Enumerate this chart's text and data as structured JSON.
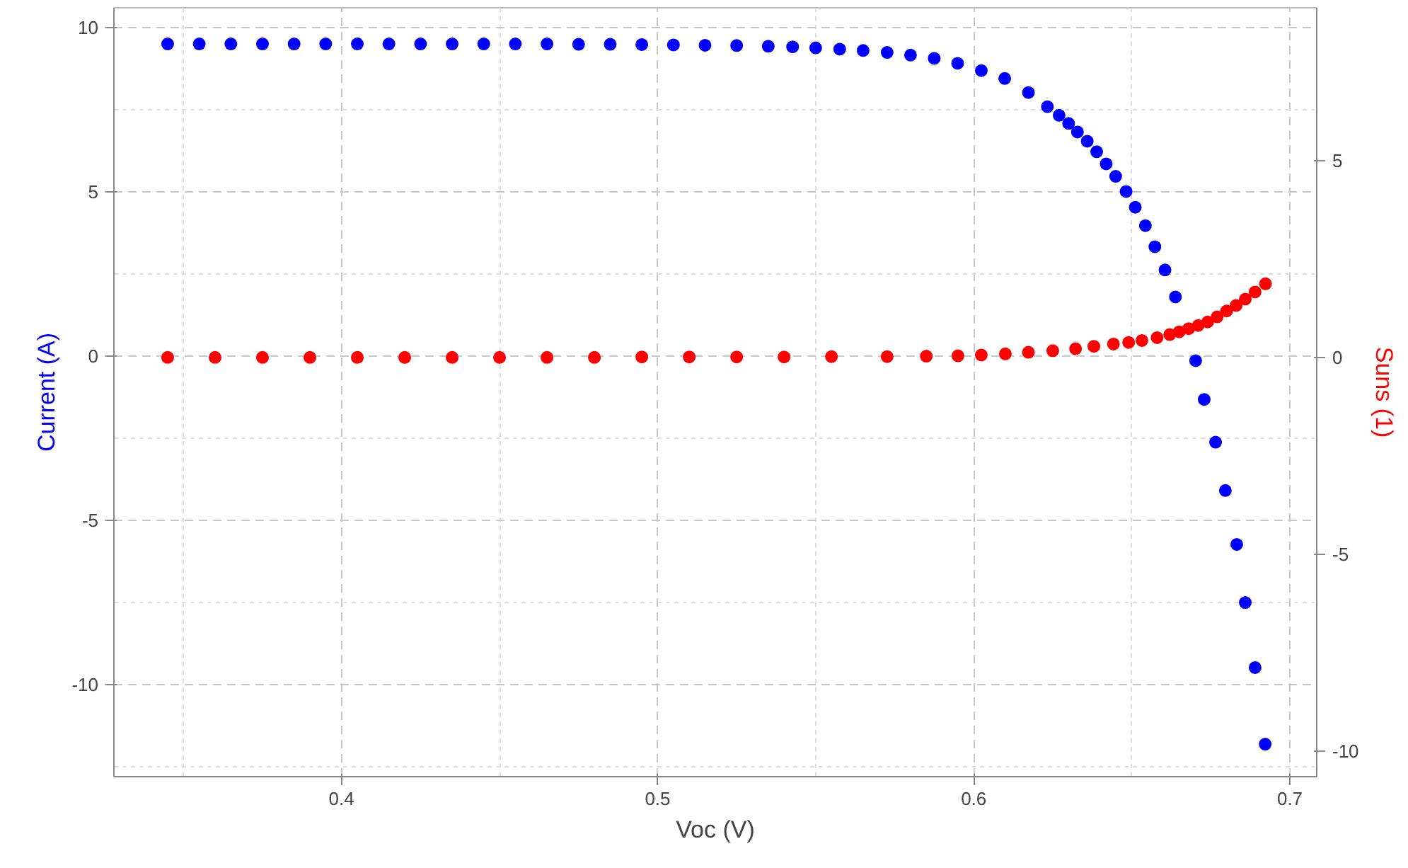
{
  "chart_data": {
    "type": "scatter",
    "xlabel": "Voc (V)",
    "ylabel": "Current (A)",
    "y2label": "Suns (1)",
    "xlim": [
      0.328,
      0.7085
    ],
    "xticks": [
      0.4,
      0.5,
      0.6,
      0.7
    ],
    "ylim": [
      -12.8,
      10.6
    ],
    "yticks": [
      -10,
      -5,
      0,
      5,
      10
    ],
    "y2lim": [
      -10.65,
      8.88
    ],
    "y2ticks": [
      -10,
      -5,
      0,
      5
    ],
    "grid": true,
    "marker": "circle",
    "series": [
      {
        "color": "#0000ff",
        "x": [
          0.345,
          0.355,
          0.365,
          0.375,
          0.385,
          0.395,
          0.405,
          0.415,
          0.425,
          0.435,
          0.445,
          0.455,
          0.465,
          0.475,
          0.485,
          0.495,
          0.505,
          0.515,
          0.525,
          0.535,
          0.5427,
          0.55,
          0.5576,
          0.565,
          0.5726,
          0.58,
          0.5875,
          0.5949,
          0.6024,
          0.6098,
          0.6173,
          0.6233,
          0.627,
          0.63,
          0.6328,
          0.6359,
          0.6389,
          0.6419,
          0.6449,
          0.6482,
          0.6511,
          0.6543,
          0.6573,
          0.6605,
          0.6638,
          0.6702,
          0.6729,
          0.6765,
          0.6796,
          0.6832,
          0.6859,
          0.689,
          0.6922
        ],
        "values": [
          9.5,
          9.5,
          9.5,
          9.5,
          9.5,
          9.5,
          9.5,
          9.5,
          9.5,
          9.5,
          9.5,
          9.5,
          9.5,
          9.49,
          9.49,
          9.48,
          9.47,
          9.46,
          9.45,
          9.43,
          9.41,
          9.38,
          9.34,
          9.3,
          9.24,
          9.16,
          9.06,
          8.91,
          8.69,
          8.45,
          8.02,
          7.59,
          7.33,
          7.08,
          6.82,
          6.54,
          6.22,
          5.85,
          5.47,
          5.01,
          4.53,
          3.97,
          3.33,
          2.62,
          1.8,
          -0.14,
          -1.32,
          -2.62,
          -4.09,
          -5.73,
          -7.5,
          -9.48,
          -11.81
        ]
      },
      {
        "color": "#ff0000",
        "axis": "y2",
        "x": [
          0.345,
          0.36,
          0.375,
          0.39,
          0.405,
          0.42,
          0.435,
          0.45,
          0.465,
          0.48,
          0.495,
          0.51,
          0.525,
          0.54,
          0.555,
          0.5726,
          0.585,
          0.595,
          0.6024,
          0.61,
          0.6173,
          0.625,
          0.6322,
          0.638,
          0.6442,
          0.649,
          0.6532,
          0.658,
          0.662,
          0.665,
          0.668,
          0.671,
          0.674,
          0.677,
          0.68,
          0.683,
          0.6859,
          0.689,
          0.6923
        ],
        "values": [
          0,
          0,
          0,
          0,
          0,
          0,
          0,
          0,
          0,
          0,
          0.01,
          0.01,
          0.01,
          0.01,
          0.02,
          0.02,
          0.03,
          0.04,
          0.06,
          0.09,
          0.13,
          0.17,
          0.22,
          0.28,
          0.34,
          0.38,
          0.43,
          0.5,
          0.58,
          0.65,
          0.73,
          0.81,
          0.9,
          1.03,
          1.18,
          1.32,
          1.48,
          1.66,
          1.87
        ]
      }
    ]
  }
}
